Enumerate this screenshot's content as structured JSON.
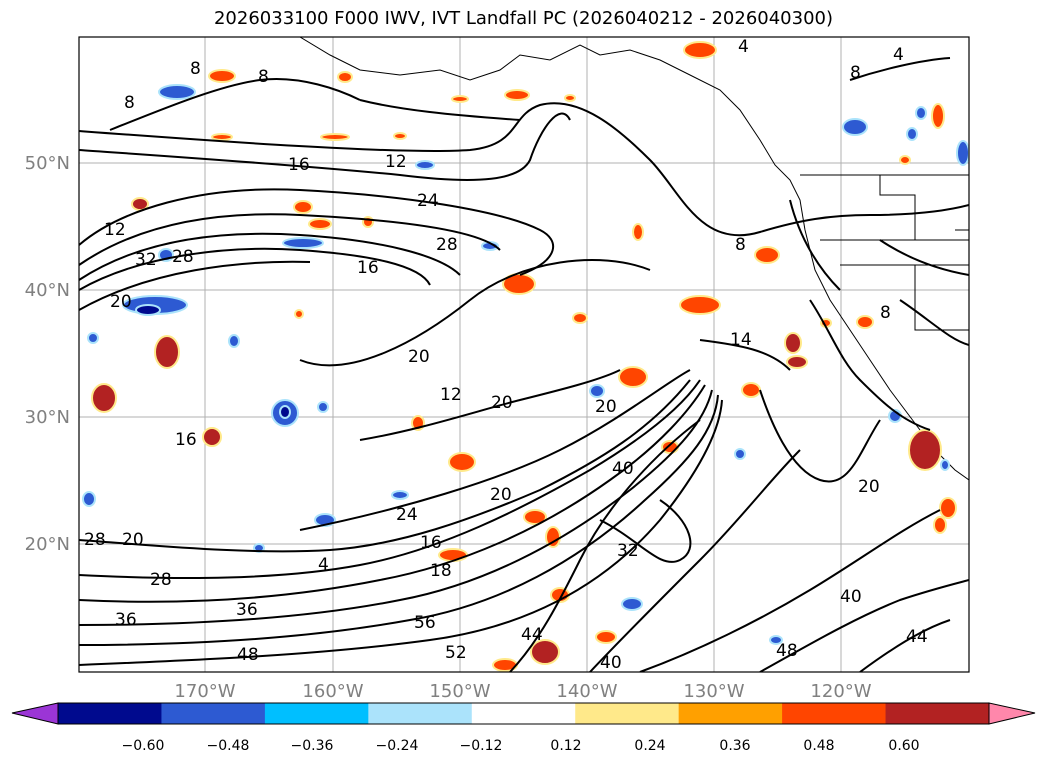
{
  "title": "2026033100 F000 IWV, IVT Landfall PC (2026040212 - 2026040300)",
  "map": {
    "lat_labels": [
      "50°N",
      "40°N",
      "30°N",
      "20°N"
    ],
    "lon_labels": [
      "170°W",
      "160°W",
      "150°W",
      "140°W",
      "130°W",
      "120°W"
    ],
    "contour_labels": [
      "4",
      "8",
      "8",
      "8",
      "4",
      "8",
      "16",
      "12",
      "12",
      "24",
      "28",
      "32",
      "28",
      "16",
      "20",
      "20",
      "12",
      "20",
      "20",
      "16",
      "40",
      "20",
      "24",
      "20",
      "28",
      "16",
      "18",
      "32",
      "36",
      "56",
      "52",
      "44",
      "40",
      "40",
      "44",
      "48",
      "48",
      "36",
      "28",
      "4",
      "8",
      "8",
      "20",
      "14"
    ]
  },
  "colorbar": {
    "tick_labels": [
      "−0.60",
      "−0.48",
      "−0.36",
      "−0.24",
      "−0.12",
      "0.12",
      "0.24",
      "0.36",
      "0.48",
      "0.60"
    ],
    "colors": [
      "#9b35d6",
      "#000a8e",
      "#2d5ad2",
      "#00bfff",
      "#abe3fb",
      "#ffffff",
      "#ffe98a",
      "#ffa000",
      "#ff4500",
      "#b22222",
      "#ff87ab"
    ]
  }
}
